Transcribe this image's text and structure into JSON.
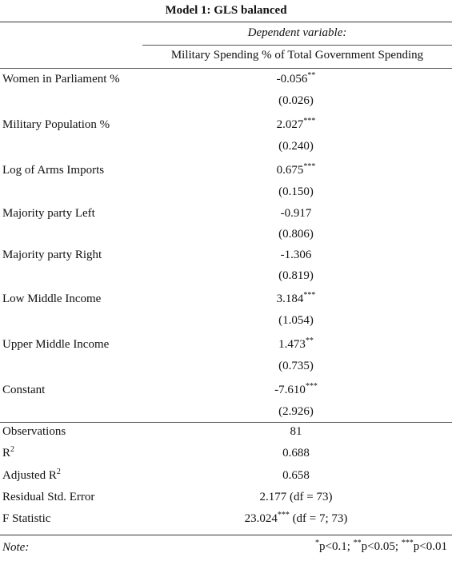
{
  "title": "Model 1: GLS balanced",
  "dependent_variable_label": "Dependent variable:",
  "dependent_variable": "Military Spending % of Total Government Spending",
  "coefficients": [
    {
      "label": "Women in Parliament %",
      "value": "-0.056",
      "stars": "**",
      "se": "(0.026)"
    },
    {
      "label": "Military Population %",
      "value": "2.027",
      "stars": "***",
      "se": "(0.240)"
    },
    {
      "label": "Log of Arms Imports",
      "value": "0.675",
      "stars": "***",
      "se": "(0.150)"
    },
    {
      "label": "Majority party Left",
      "value": "-0.917",
      "stars": "",
      "se": "(0.806)"
    },
    {
      "label": "Majority party Right",
      "value": "-1.306",
      "stars": "",
      "se": "(0.819)"
    },
    {
      "label": "Low Middle Income",
      "value": "3.184",
      "stars": "***",
      "se": "(1.054)"
    },
    {
      "label": "Upper Middle Income",
      "value": "1.473",
      "stars": "**",
      "se": "(0.735)"
    },
    {
      "label": "Constant",
      "value": "-7.610",
      "stars": "***",
      "se": "(2.926)"
    }
  ],
  "statistics": {
    "observations": {
      "label": "Observations",
      "value": "81"
    },
    "r2": {
      "label": "R",
      "label_sup": "2",
      "value": "0.688"
    },
    "adj_r2": {
      "label": "Adjusted R",
      "label_sup": "2",
      "value": "0.658"
    },
    "rse": {
      "label": "Residual Std. Error",
      "value": "2.177 (df = 73)"
    },
    "f_stat": {
      "label": "F Statistic",
      "value": "23.024",
      "stars": "***",
      "df": " (df = 7; 73)"
    }
  },
  "note": {
    "label": "Note:",
    "star1": "*",
    "p1": "p<0.1; ",
    "star2": "**",
    "p2": "p<0.05; ",
    "star3": "***",
    "p3": "p<0.01"
  }
}
